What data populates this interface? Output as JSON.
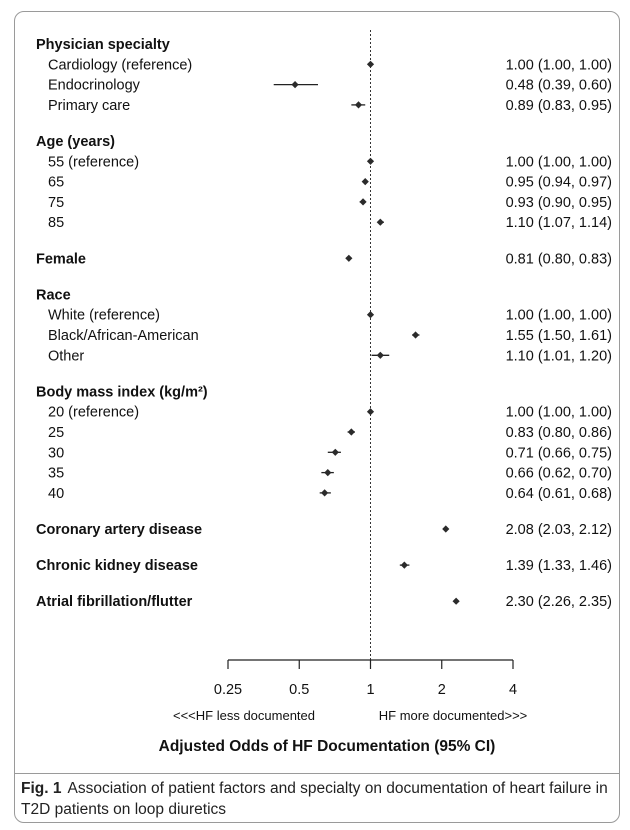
{
  "chart_data": {
    "type": "forest",
    "xlabel": "Adjusted Odds of HF Documentation (95% CI)",
    "x_scale": "log2",
    "xlim": [
      0.25,
      4
    ],
    "xticks": [
      0.25,
      0.5,
      1,
      2,
      4
    ],
    "xtick_labels": [
      "0.25",
      "0.5",
      "1",
      "2",
      "4"
    ],
    "reference_line": 1,
    "direction_left": "<<<HF less documented",
    "direction_right": "HF more documented>>>",
    "groups": [
      {
        "label": "Physician specialty",
        "rows": [
          {
            "label": "Cardiology (reference)",
            "or": 1.0,
            "lo": 1.0,
            "hi": 1.0,
            "ci_text": "1.00 (1.00, 1.00)"
          },
          {
            "label": "Endocrinology",
            "or": 0.48,
            "lo": 0.39,
            "hi": 0.6,
            "ci_text": "0.48 (0.39, 0.60)"
          },
          {
            "label": "Primary care",
            "or": 0.89,
            "lo": 0.83,
            "hi": 0.95,
            "ci_text": "0.89 (0.83, 0.95)"
          }
        ]
      },
      {
        "label": "Age (years)",
        "rows": [
          {
            "label": "55 (reference)",
            "or": 1.0,
            "lo": 1.0,
            "hi": 1.0,
            "ci_text": "1.00 (1.00, 1.00)"
          },
          {
            "label": "65",
            "or": 0.95,
            "lo": 0.94,
            "hi": 0.97,
            "ci_text": "0.95 (0.94, 0.97)"
          },
          {
            "label": "75",
            "or": 0.93,
            "lo": 0.9,
            "hi": 0.95,
            "ci_text": "0.93 (0.90, 0.95)"
          },
          {
            "label": "85",
            "or": 1.1,
            "lo": 1.07,
            "hi": 1.14,
            "ci_text": "1.10 (1.07, 1.14)"
          }
        ]
      },
      {
        "label": "Female",
        "value": {
          "or": 0.81,
          "lo": 0.8,
          "hi": 0.83,
          "ci_text": "0.81 (0.80, 0.83)"
        },
        "rows": []
      },
      {
        "label": "Race",
        "rows": [
          {
            "label": "White (reference)",
            "or": 1.0,
            "lo": 1.0,
            "hi": 1.0,
            "ci_text": "1.00 (1.00, 1.00)"
          },
          {
            "label": "Black/African-American",
            "or": 1.55,
            "lo": 1.5,
            "hi": 1.61,
            "ci_text": "1.55 (1.50, 1.61)"
          },
          {
            "label": "Other",
            "or": 1.1,
            "lo": 1.01,
            "hi": 1.2,
            "ci_text": "1.10 (1.01, 1.20)"
          }
        ]
      },
      {
        "label": "Body mass index (kg/m²)",
        "rows": [
          {
            "label": "20 (reference)",
            "or": 1.0,
            "lo": 1.0,
            "hi": 1.0,
            "ci_text": "1.00 (1.00, 1.00)"
          },
          {
            "label": "25",
            "or": 0.83,
            "lo": 0.8,
            "hi": 0.86,
            "ci_text": "0.83 (0.80, 0.86)"
          },
          {
            "label": "30",
            "or": 0.71,
            "lo": 0.66,
            "hi": 0.75,
            "ci_text": "0.71 (0.66, 0.75)"
          },
          {
            "label": "35",
            "or": 0.66,
            "lo": 0.62,
            "hi": 0.7,
            "ci_text": "0.66 (0.62, 0.70)"
          },
          {
            "label": "40",
            "or": 0.64,
            "lo": 0.61,
            "hi": 0.68,
            "ci_text": "0.64 (0.61, 0.68)"
          }
        ]
      },
      {
        "label": "Coronary artery disease",
        "value": {
          "or": 2.08,
          "lo": 2.03,
          "hi": 2.12,
          "ci_text": "2.08 (2.03, 2.12)"
        },
        "rows": []
      },
      {
        "label": "Chronic kidney disease",
        "value": {
          "or": 1.39,
          "lo": 1.33,
          "hi": 1.46,
          "ci_text": "1.39 (1.33, 1.46)"
        },
        "rows": []
      },
      {
        "label": "Atrial fibrillation/flutter",
        "value": {
          "or": 2.3,
          "lo": 2.26,
          "hi": 2.35,
          "ci_text": "2.30 (2.26, 2.35)"
        },
        "rows": []
      }
    ]
  },
  "caption": {
    "fig_number": "Fig. 1",
    "text": "Association of patient factors and specialty on documentation of heart failure in T2D patients on loop diuretics"
  }
}
